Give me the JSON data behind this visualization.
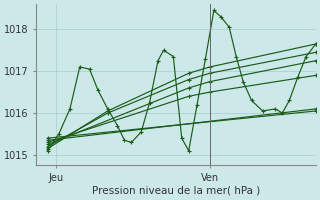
{
  "background_color": "#cce8e8",
  "plot_bg_color": "#cce8e8",
  "line_color": "#1a5c1a",
  "marker": "+",
  "markersize": 3.5,
  "linewidth": 0.85,
  "xlabel": "Pression niveau de la mer( hPa )",
  "ylim": [
    1014.75,
    1018.6
  ],
  "xlim": [
    0.0,
    1.0
  ],
  "yticks": [
    1015,
    1016,
    1017,
    1018
  ],
  "xtick_pos": [
    0.07,
    0.62
  ],
  "xtick_labels": [
    "Jeu",
    "Ven"
  ],
  "grid_color": "#a8cccc",
  "vline_x": 0.62,
  "series_zigzag": {
    "x": [
      0.04,
      0.08,
      0.12,
      0.155,
      0.19,
      0.22,
      0.255,
      0.29,
      0.315,
      0.34,
      0.375,
      0.405,
      0.435,
      0.455,
      0.49,
      0.52,
      0.545,
      0.575,
      0.605,
      0.635,
      0.66,
      0.69,
      0.715,
      0.74,
      0.77,
      0.81,
      0.855,
      0.88,
      0.905,
      0.935,
      0.965,
      1.0
    ],
    "y": [
      1015.1,
      1015.5,
      1016.1,
      1017.1,
      1017.05,
      1016.55,
      1016.1,
      1015.7,
      1015.35,
      1015.3,
      1015.55,
      1016.25,
      1017.25,
      1017.5,
      1017.35,
      1015.4,
      1015.1,
      1016.2,
      1017.3,
      1018.45,
      1018.3,
      1018.05,
      1017.35,
      1016.75,
      1016.3,
      1016.05,
      1016.1,
      1016.0,
      1016.3,
      1016.85,
      1017.35,
      1017.65
    ]
  },
  "trend_lines": [
    {
      "x": [
        0.04,
        0.255,
        0.545,
        0.62,
        1.0
      ],
      "y": [
        1015.15,
        1016.05,
        1016.95,
        1017.1,
        1017.65
      ]
    },
    {
      "x": [
        0.04,
        0.255,
        0.545,
        0.62,
        1.0
      ],
      "y": [
        1015.2,
        1016.0,
        1016.8,
        1016.95,
        1017.45
      ]
    },
    {
      "x": [
        0.04,
        0.545,
        0.62,
        1.0
      ],
      "y": [
        1015.25,
        1016.6,
        1016.75,
        1017.25
      ]
    },
    {
      "x": [
        0.04,
        0.545,
        0.62,
        1.0
      ],
      "y": [
        1015.3,
        1016.4,
        1016.5,
        1016.9
      ]
    },
    {
      "x": [
        0.04,
        1.0
      ],
      "y": [
        1015.35,
        1016.1
      ]
    },
    {
      "x": [
        0.04,
        1.0
      ],
      "y": [
        1015.4,
        1016.05
      ]
    }
  ]
}
